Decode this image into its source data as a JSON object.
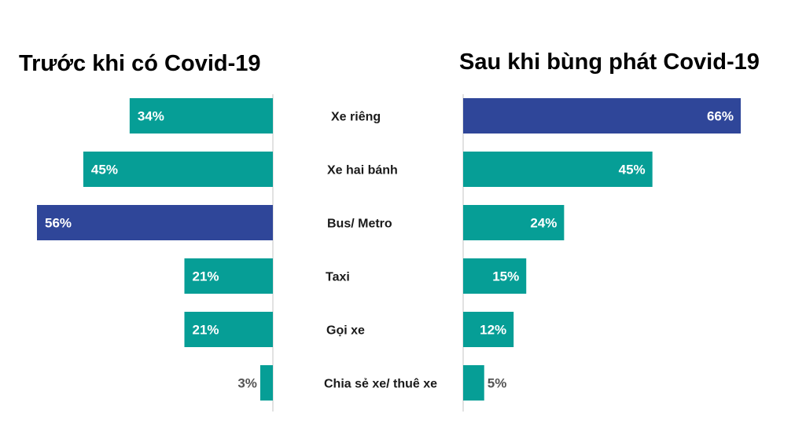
{
  "chart_data": [
    {
      "type": "bar",
      "orientation": "horizontal",
      "direction": "right-to-left",
      "title": "Trước khi có Covid-19",
      "categories": [
        "Xe riêng",
        "Xe hai bánh",
        "Bus/ Metro",
        "Taxi",
        "Gọi xe",
        "Chia sẻ xe/ thuê xe"
      ],
      "values": [
        34,
        45,
        56,
        21,
        21,
        3
      ],
      "value_labels": [
        "34%",
        "45%",
        "56%",
        "21%",
        "21%",
        "3%"
      ],
      "highlight_index": 2,
      "xlim": [
        0,
        56
      ]
    },
    {
      "type": "bar",
      "orientation": "horizontal",
      "direction": "left-to-right",
      "title": "Sau khi bùng phát Covid-19",
      "categories": [
        "Xe riêng",
        "Xe hai bánh",
        "Bus/ Metro",
        "Taxi",
        "Gọi xe",
        "Chia sẻ xe/ thuê xe"
      ],
      "values": [
        66,
        45,
        24,
        15,
        12,
        5
      ],
      "value_labels": [
        "66%",
        "45%",
        "24%",
        "15%",
        "12%",
        "5%"
      ],
      "highlight_index": 0,
      "xlim": [
        0,
        66
      ]
    }
  ],
  "colors": {
    "bar": "#069e96",
    "highlight": "#2f4699",
    "label_inside": "#ffffff",
    "label_outside": "#555555",
    "axis_line": "#d9d9d9"
  }
}
